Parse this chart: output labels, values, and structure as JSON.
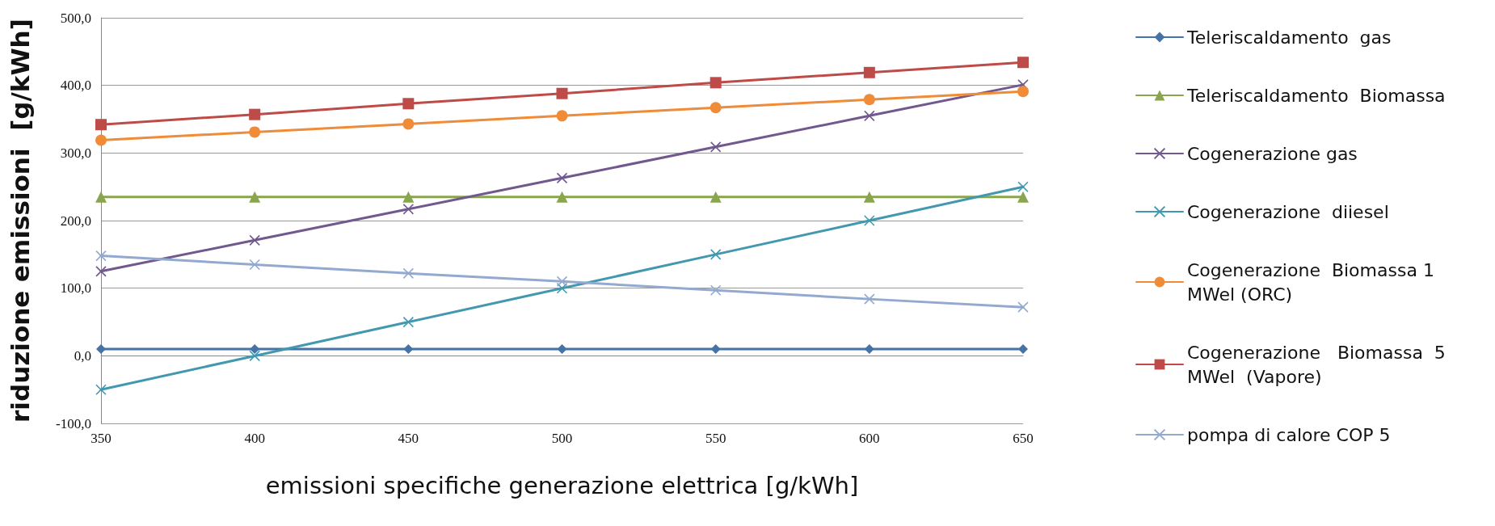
{
  "chart_data": {
    "type": "line",
    "xlabel": "emissioni specifiche generazione elettrica [g/kWh]",
    "ylabel": "riduzione emissioni  [g/kWh]",
    "x": [
      350,
      400,
      450,
      500,
      550,
      600,
      650
    ],
    "xlim": [
      350,
      650
    ],
    "xticks": [
      350,
      400,
      450,
      500,
      550,
      600,
      650
    ],
    "ylim": [
      -100,
      500
    ],
    "yticks": [
      {
        "value": -100,
        "label": "-100,0"
      },
      {
        "value": 0,
        "label": "0,0"
      },
      {
        "value": 100,
        "label": "100,0"
      },
      {
        "value": 200,
        "label": "200,0"
      },
      {
        "value": 300,
        "label": "300,0"
      },
      {
        "value": 400,
        "label": "400,0"
      },
      {
        "value": 500,
        "label": "500,0"
      }
    ],
    "grid": "y",
    "legend": "right",
    "line_style": "solid",
    "series": [
      {
        "name": "Teleriscaldamento  gas",
        "color": "#4572a7",
        "marker": "diamond",
        "values": [
          10,
          10,
          10,
          10,
          10,
          10,
          10
        ]
      },
      {
        "name": "Teleriscaldamento  Biomassa",
        "color": "#89a54e",
        "marker": "triangle",
        "values": [
          235,
          235,
          235,
          235,
          235,
          235,
          235
        ]
      },
      {
        "name": "Cogenerazione gas",
        "color": "#71588f",
        "marker": "cross",
        "values": [
          125,
          171,
          217,
          263,
          309,
          355,
          401
        ]
      },
      {
        "name": "Cogenerazione  diiesel",
        "color": "#4198af",
        "marker": "cross",
        "values": [
          -50,
          0,
          50,
          100,
          150,
          200,
          250
        ]
      },
      {
        "name": "Cogenerazione  Biomassa 1 MWel (ORC)",
        "color": "#f08c38",
        "marker": "circle",
        "values": [
          319,
          331,
          343,
          355,
          367,
          379,
          391
        ]
      },
      {
        "name": "Cogenerazione   Biomassa  5 MWel  (Vapore)",
        "color": "#be4b48",
        "marker": "square",
        "values": [
          342,
          357,
          373,
          388,
          404,
          419,
          434
        ]
      },
      {
        "name": "pompa di calore COP 5",
        "color": "#93a9cf",
        "marker": "cross",
        "values": [
          148,
          135,
          122,
          110,
          97,
          84,
          72
        ]
      }
    ]
  }
}
